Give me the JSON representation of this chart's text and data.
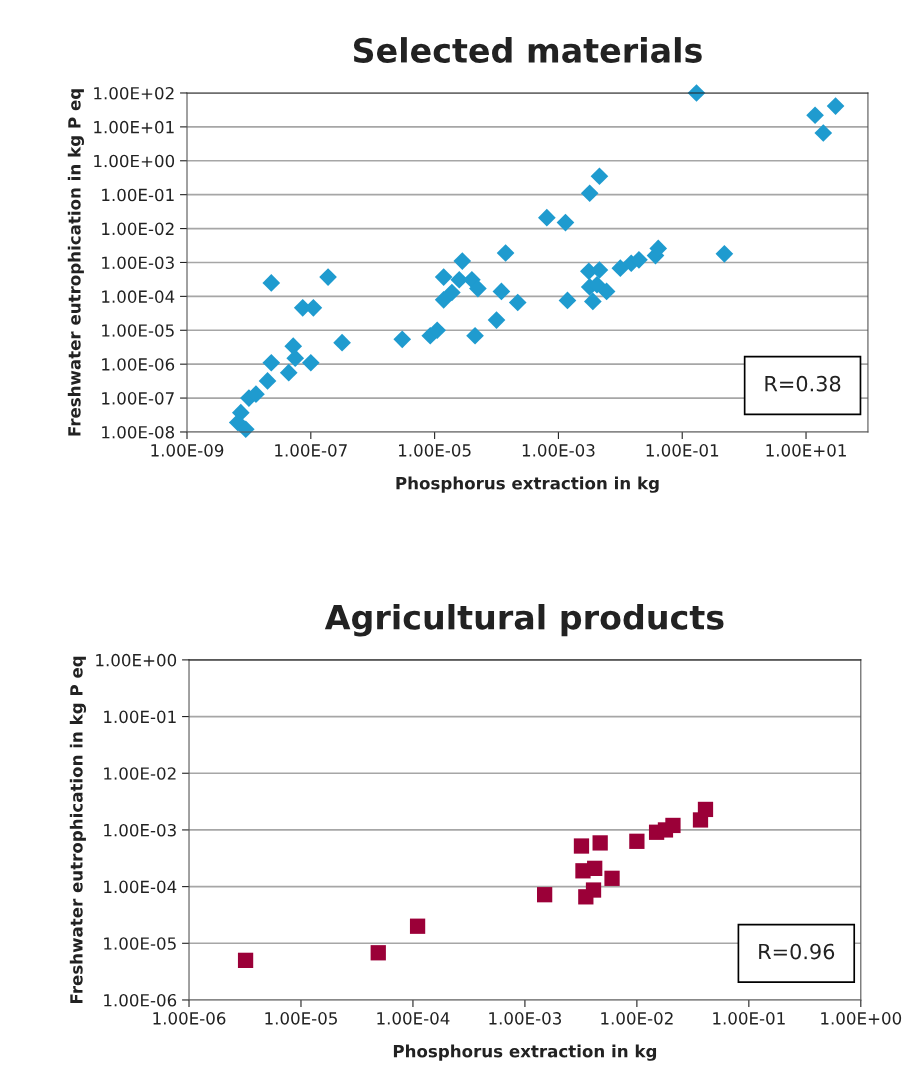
{
  "chart_data": [
    {
      "type": "scatter",
      "title": "Selected materials",
      "xlabel": "Phosphorus extraction in kg",
      "ylabel": "Freshwater eutrophication in kg P eq",
      "log": "xy",
      "grid": "y",
      "marker": "diamond",
      "annotations": [
        "R=0.38"
      ],
      "series": [
        {
          "color": "#1f9bcf",
          "x": [
            7.4e-09,
            6.6e-09,
            8.9e-09,
            1e-08,
            1.3e-08,
            2e-08,
            2.3e-08,
            2.3e-08,
            4.4e-08,
            5.2e-08,
            5.6e-08,
            7.4e-08,
            1.1e-07,
            1e-07,
            1.9e-07,
            3.2e-07,
            3e-06,
            8.5e-06,
            1.1e-05,
            1.4e-05,
            1.4e-05,
            1.9e-05,
            2.8e-05,
            2.5e-05,
            4e-05,
            5e-05,
            4.5e-05,
            0.0001,
            0.00012,
            0.00014,
            0.00022,
            0.00065,
            0.0013,
            0.0032,
            0.0046,
            0.0031,
            0.0046,
            0.0032,
            0.0042,
            0.006,
            0.0036,
            0.0014,
            0.01,
            0.015,
            0.02,
            0.037,
            0.041,
            0.17,
            0.48,
            14,
            30,
            19
          ],
          "values": [
            3.7e-08,
            1.9e-08,
            1.2e-08,
            1e-07,
            1.3e-07,
            3.2e-07,
            1.1e-06,
            0.00025,
            5.6e-07,
            3.4e-06,
            1.5e-06,
            4.6e-05,
            4.6e-05,
            1.1e-06,
            0.00037,
            4.3e-06,
            5.4e-06,
            6.9e-06,
            1e-05,
            0.00037,
            7.9e-05,
            0.00013,
            0.0011,
            0.00031,
            0.00031,
            0.00017,
            6.9e-06,
            2e-05,
            0.00014,
            0.0019,
            6.6e-05,
            0.021,
            0.015,
            0.11,
            0.35,
            0.00055,
            0.0006,
            0.00019,
            0.00022,
            0.00014,
            7.1e-05,
            7.6e-05,
            0.00068,
            0.00095,
            0.0012,
            0.0016,
            0.0026,
            100,
            0.0018,
            22,
            41,
            6.6
          ]
        }
      ],
      "xlim": [
        1e-09,
        100
      ],
      "ylim": [
        1e-08,
        100
      ],
      "xticks": [
        {
          "value": 1e-09,
          "label": "1.00E-09"
        },
        {
          "value": 1e-07,
          "label": "1.00E-07"
        },
        {
          "value": 1e-05,
          "label": "1.00E-05"
        },
        {
          "value": 0.001,
          "label": "1.00E-03"
        },
        {
          "value": 0.1,
          "label": "1.00E-01"
        },
        {
          "value": 10,
          "label": "1.00E+01"
        }
      ],
      "yticks": [
        {
          "value": 1e-08,
          "label": "1.00E-08"
        },
        {
          "value": 1e-07,
          "label": "1.00E-07"
        },
        {
          "value": 1e-06,
          "label": "1.00E-06"
        },
        {
          "value": 1e-05,
          "label": "1.00E-05"
        },
        {
          "value": 0.0001,
          "label": "1.00E-04"
        },
        {
          "value": 0.001,
          "label": "1.00E-03"
        },
        {
          "value": 0.01,
          "label": "1.00E-02"
        },
        {
          "value": 0.1,
          "label": "1.00E-01"
        },
        {
          "value": 1,
          "label": "1.00E+00"
        },
        {
          "value": 10,
          "label": "1.00E+01"
        },
        {
          "value": 100,
          "label": "1.00E+02"
        }
      ]
    },
    {
      "type": "scatter",
      "title": "Agricultural products",
      "xlabel": "Phosphorus extraction in kg",
      "ylabel": "Freshwater eutrophication in kg P eq",
      "log": "xy",
      "grid": "y",
      "marker": "square",
      "annotations": [
        "R=0.96"
      ],
      "series": [
        {
          "color": "#9b0038",
          "x": [
            3.2e-06,
            4.9e-05,
            0.00011,
            0.0015,
            0.0032,
            0.0047,
            0.0033,
            0.0042,
            0.006,
            0.0041,
            0.0035,
            0.01,
            0.015,
            0.018,
            0.021,
            0.037,
            0.041
          ],
          "values": [
            5e-06,
            6.8e-06,
            2e-05,
            7.2e-05,
            0.00052,
            0.00059,
            0.00019,
            0.00021,
            0.00014,
            8.7e-05,
            6.6e-05,
            0.00063,
            0.00091,
            0.001,
            0.0012,
            0.0015,
            0.0023
          ]
        }
      ],
      "xlim": [
        1e-06,
        1
      ],
      "ylim": [
        1e-06,
        1
      ],
      "xticks": [
        {
          "value": 1e-06,
          "label": "1.00E-06"
        },
        {
          "value": 1e-05,
          "label": "1.00E-05"
        },
        {
          "value": 0.0001,
          "label": "1.00E-04"
        },
        {
          "value": 0.001,
          "label": "1.00E-03"
        },
        {
          "value": 0.01,
          "label": "1.00E-02"
        },
        {
          "value": 0.1,
          "label": "1.00E-01"
        },
        {
          "value": 1,
          "label": "1.00E+00"
        }
      ],
      "yticks": [
        {
          "value": 1e-06,
          "label": "1.00E-06"
        },
        {
          "value": 1e-05,
          "label": "1.00E-05"
        },
        {
          "value": 0.0001,
          "label": "1.00E-04"
        },
        {
          "value": 0.001,
          "label": "1.00E-03"
        },
        {
          "value": 0.01,
          "label": "1.00E-02"
        },
        {
          "value": 0.1,
          "label": "1.00E-01"
        },
        {
          "value": 1,
          "label": "1.00E+00"
        }
      ]
    }
  ]
}
